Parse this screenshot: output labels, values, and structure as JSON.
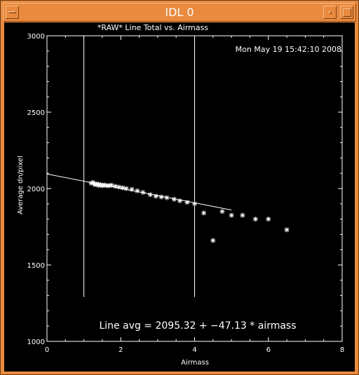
{
  "window": {
    "title": "IDL 0",
    "buttons": {
      "menu": "window-menu",
      "minimize": "minimize",
      "maximize": "maximize"
    }
  },
  "plot": {
    "title": "*RAW* Line Total vs. Airmass",
    "timestamp": "Mon May 19 15:42:10 2008",
    "xlabel": "Airmass",
    "ylabel": "Average dn/pixel",
    "annotation": "Line avg = 2095.32 + −47.13 * airmass"
  },
  "chart_data": {
    "type": "scatter",
    "title": "*RAW* Line Total vs. Airmass",
    "xlabel": "Airmass",
    "ylabel": "Average dn/pixel",
    "xlim": [
      0,
      8
    ],
    "ylim": [
      1000,
      3000
    ],
    "x_ticks": [
      "0",
      "2",
      "4",
      "6",
      "8"
    ],
    "y_ticks": [
      "1000",
      "1500",
      "2000",
      "2500",
      "3000"
    ],
    "grid": false,
    "points": {
      "x": [
        1.2,
        1.25,
        1.3,
        1.3,
        1.35,
        1.4,
        1.4,
        1.45,
        1.5,
        1.5,
        1.55,
        1.6,
        1.65,
        1.7,
        1.75,
        1.85,
        1.95,
        2.05,
        2.15,
        2.3,
        2.45,
        2.6,
        2.8,
        2.95,
        3.1,
        3.25,
        3.45,
        3.6,
        3.8,
        4.0,
        4.25,
        4.5,
        4.75,
        5.0,
        5.3,
        5.65,
        6.0,
        6.5
      ],
      "y": [
        2035,
        2040,
        2030,
        2025,
        2030,
        2028,
        2020,
        2025,
        2022,
        2018,
        2024,
        2020,
        2018,
        2020,
        2022,
        2015,
        2010,
        2005,
        2000,
        1995,
        1985,
        1975,
        1960,
        1950,
        1945,
        1940,
        1930,
        1920,
        1910,
        1900,
        1840,
        1660,
        1850,
        1825,
        1825,
        1800,
        1800,
        1730
      ]
    },
    "fit_line": {
      "intercept": 2095.32,
      "slope": -47.13,
      "x_range": [
        0,
        5
      ]
    },
    "vertical_lines": [
      1,
      4
    ],
    "vertical_line_range": [
      1290,
      3000
    ],
    "colors": {
      "background": "#000000",
      "foreground": "#ffffff",
      "window_frame": "#e98a3e"
    }
  }
}
